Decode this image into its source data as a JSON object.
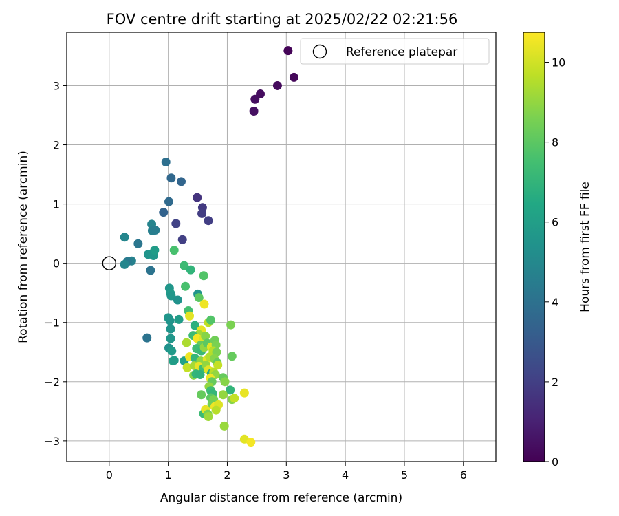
{
  "chart_data": {
    "type": "scatter",
    "title": "FOV centre drift starting at 2025/02/22 02:21:56",
    "xlabel": "Angular distance from reference (arcmin)",
    "ylabel": "Rotation from reference (arcmin)",
    "xlim": [
      -0.72,
      6.55
    ],
    "ylim": [
      -3.35,
      3.9
    ],
    "xticks": [
      "0",
      "1",
      "2",
      "3",
      "4",
      "5",
      "6"
    ],
    "yticks": [
      "−3",
      "−2",
      "−1",
      "0",
      "1",
      "2",
      "3"
    ],
    "grid": true,
    "legend": {
      "position": "top-right",
      "entries": [
        "Reference platepar"
      ]
    },
    "reference_point": {
      "x": 0,
      "y": 0
    },
    "colorbar": {
      "label": "Hours from first FF file",
      "min": 0,
      "max": 10.75,
      "ticks": [
        "0",
        "2",
        "4",
        "6",
        "8",
        "10"
      ],
      "colormap": "viridis"
    },
    "points": [
      {
        "x": 3.03,
        "y": 3.59,
        "h": 0.1
      },
      {
        "x": 3.13,
        "y": 3.14,
        "h": 0.2
      },
      {
        "x": 2.85,
        "y": 3.0,
        "h": 0.3
      },
      {
        "x": 2.56,
        "y": 2.86,
        "h": 0.35
      },
      {
        "x": 2.47,
        "y": 2.77,
        "h": 0.4
      },
      {
        "x": 2.45,
        "y": 2.57,
        "h": 0.45
      },
      {
        "x": 1.49,
        "y": 1.11,
        "h": 1.6
      },
      {
        "x": 1.58,
        "y": 0.94,
        "h": 1.8
      },
      {
        "x": 1.57,
        "y": 0.84,
        "h": 1.9
      },
      {
        "x": 1.68,
        "y": 0.72,
        "h": 1.95
      },
      {
        "x": 1.13,
        "y": 0.67,
        "h": 2.1
      },
      {
        "x": 1.24,
        "y": 0.4,
        "h": 2.0
      },
      {
        "x": 0.96,
        "y": 1.71,
        "h": 3.9
      },
      {
        "x": 1.05,
        "y": 1.44,
        "h": 3.6
      },
      {
        "x": 1.22,
        "y": 1.38,
        "h": 3.5
      },
      {
        "x": 1.01,
        "y": 1.04,
        "h": 3.7
      },
      {
        "x": 0.92,
        "y": 0.86,
        "h": 3.4
      },
      {
        "x": 0.72,
        "y": 0.66,
        "h": 4.8
      },
      {
        "x": 0.73,
        "y": 0.55,
        "h": 4.6
      },
      {
        "x": 0.78,
        "y": 0.56,
        "h": 4.5
      },
      {
        "x": 0.26,
        "y": 0.44,
        "h": 4.9
      },
      {
        "x": 0.49,
        "y": 0.33,
        "h": 4.2
      },
      {
        "x": 0.66,
        "y": 0.15,
        "h": 5.5
      },
      {
        "x": 0.75,
        "y": 0.13,
        "h": 5.6
      },
      {
        "x": 0.77,
        "y": 0.22,
        "h": 5.9
      },
      {
        "x": 0.38,
        "y": 0.04,
        "h": 4.7
      },
      {
        "x": 0.31,
        "y": 0.03,
        "h": 4.4
      },
      {
        "x": 0.26,
        "y": -0.02,
        "h": 4.9
      },
      {
        "x": 0.7,
        "y": -0.12,
        "h": 4.1
      },
      {
        "x": 0.64,
        "y": -1.26,
        "h": 4.1
      },
      {
        "x": 1.1,
        "y": 0.22,
        "h": 7.6
      },
      {
        "x": 1.27,
        "y": -0.04,
        "h": 7.3
      },
      {
        "x": 1.38,
        "y": -0.11,
        "h": 7.0
      },
      {
        "x": 1.6,
        "y": -0.21,
        "h": 7.8
      },
      {
        "x": 1.29,
        "y": -0.39,
        "h": 7.6
      },
      {
        "x": 1.02,
        "y": -0.42,
        "h": 5.6
      },
      {
        "x": 1.04,
        "y": -0.51,
        "h": 5.8
      },
      {
        "x": 1.05,
        "y": -0.55,
        "h": 5.6
      },
      {
        "x": 1.16,
        "y": -0.62,
        "h": 5.4
      },
      {
        "x": 1.5,
        "y": -0.52,
        "h": 5.5
      },
      {
        "x": 1.52,
        "y": -0.58,
        "h": 8.0
      },
      {
        "x": 1.61,
        "y": -0.69,
        "h": 10.5
      },
      {
        "x": 1.34,
        "y": -0.8,
        "h": 7.5
      },
      {
        "x": 1.36,
        "y": -0.89,
        "h": 10.3
      },
      {
        "x": 1.0,
        "y": -0.92,
        "h": 5.6
      },
      {
        "x": 1.03,
        "y": -0.97,
        "h": 5.5
      },
      {
        "x": 1.18,
        "y": -0.95,
        "h": 5.9
      },
      {
        "x": 1.04,
        "y": -1.11,
        "h": 5.5
      },
      {
        "x": 1.04,
        "y": -1.27,
        "h": 5.6
      },
      {
        "x": 1.01,
        "y": -1.43,
        "h": 5.4
      },
      {
        "x": 1.06,
        "y": -1.48,
        "h": 5.8
      },
      {
        "x": 1.08,
        "y": -1.65,
        "h": 6.3
      },
      {
        "x": 1.1,
        "y": -1.64,
        "h": 5.9
      },
      {
        "x": 1.27,
        "y": -1.65,
        "h": 6.1
      },
      {
        "x": 2.06,
        "y": -1.04,
        "h": 8.6
      },
      {
        "x": 2.08,
        "y": -1.57,
        "h": 8.2
      },
      {
        "x": 1.68,
        "y": -1.0,
        "h": 9.7
      },
      {
        "x": 1.72,
        "y": -0.96,
        "h": 7.8
      },
      {
        "x": 1.45,
        "y": -1.05,
        "h": 6.8
      },
      {
        "x": 1.56,
        "y": -1.13,
        "h": 10.4
      },
      {
        "x": 1.52,
        "y": -1.2,
        "h": 9.2
      },
      {
        "x": 1.42,
        "y": -1.22,
        "h": 7.3
      },
      {
        "x": 1.49,
        "y": -1.27,
        "h": 10.6
      },
      {
        "x": 1.6,
        "y": -1.27,
        "h": 10.2
      },
      {
        "x": 1.63,
        "y": -1.23,
        "h": 8.8
      },
      {
        "x": 1.31,
        "y": -1.34,
        "h": 9.4
      },
      {
        "x": 1.55,
        "y": -1.38,
        "h": 8.2
      },
      {
        "x": 1.48,
        "y": -1.44,
        "h": 7.4
      },
      {
        "x": 1.56,
        "y": -1.48,
        "h": 7.2
      },
      {
        "x": 1.61,
        "y": -1.42,
        "h": 9.0
      },
      {
        "x": 1.66,
        "y": -1.35,
        "h": 8.0
      },
      {
        "x": 1.73,
        "y": -1.41,
        "h": 10.3
      },
      {
        "x": 1.79,
        "y": -1.3,
        "h": 8.4
      },
      {
        "x": 1.81,
        "y": -1.38,
        "h": 8.6
      },
      {
        "x": 1.76,
        "y": -1.48,
        "h": 9.6
      },
      {
        "x": 1.82,
        "y": -1.5,
        "h": 8.6
      },
      {
        "x": 1.36,
        "y": -1.58,
        "h": 10.5
      },
      {
        "x": 1.45,
        "y": -1.6,
        "h": 7.1
      },
      {
        "x": 1.55,
        "y": -1.65,
        "h": 8.9
      },
      {
        "x": 1.66,
        "y": -1.62,
        "h": 10.3
      },
      {
        "x": 1.7,
        "y": -1.58,
        "h": 9.5
      },
      {
        "x": 1.78,
        "y": -1.61,
        "h": 8.8
      },
      {
        "x": 1.83,
        "y": -1.68,
        "h": 8.2
      },
      {
        "x": 1.84,
        "y": -1.72,
        "h": 9.8
      },
      {
        "x": 1.32,
        "y": -1.76,
        "h": 9.8
      },
      {
        "x": 1.44,
        "y": -1.73,
        "h": 9.3
      },
      {
        "x": 1.52,
        "y": -1.74,
        "h": 10.4
      },
      {
        "x": 1.59,
        "y": -1.78,
        "h": 7.4
      },
      {
        "x": 1.64,
        "y": -1.72,
        "h": 9.0
      },
      {
        "x": 1.68,
        "y": -1.8,
        "h": 10.3
      },
      {
        "x": 1.73,
        "y": -1.86,
        "h": 6.6
      },
      {
        "x": 1.77,
        "y": -1.84,
        "h": 9.6
      },
      {
        "x": 1.8,
        "y": -1.88,
        "h": 9.0
      },
      {
        "x": 1.43,
        "y": -1.89,
        "h": 8.8
      },
      {
        "x": 1.47,
        "y": -1.87,
        "h": 7.0
      },
      {
        "x": 1.54,
        "y": -1.88,
        "h": 6.9
      },
      {
        "x": 1.71,
        "y": -1.94,
        "h": 10.5
      },
      {
        "x": 1.74,
        "y": -2.0,
        "h": 8.2
      },
      {
        "x": 1.93,
        "y": -1.93,
        "h": 8.2
      },
      {
        "x": 1.96,
        "y": -2.0,
        "h": 8.8
      },
      {
        "x": 1.69,
        "y": -2.08,
        "h": 9.0
      },
      {
        "x": 1.72,
        "y": -2.15,
        "h": 7.4
      },
      {
        "x": 1.75,
        "y": -2.2,
        "h": 7.1
      },
      {
        "x": 2.05,
        "y": -2.14,
        "h": 7.0
      },
      {
        "x": 1.56,
        "y": -2.22,
        "h": 8.2
      },
      {
        "x": 1.72,
        "y": -2.27,
        "h": 8.0
      },
      {
        "x": 1.77,
        "y": -2.3,
        "h": 8.6
      },
      {
        "x": 1.93,
        "y": -2.22,
        "h": 9.0
      },
      {
        "x": 2.08,
        "y": -2.3,
        "h": 8.8
      },
      {
        "x": 2.12,
        "y": -2.28,
        "h": 9.8
      },
      {
        "x": 2.29,
        "y": -2.19,
        "h": 10.4
      },
      {
        "x": 1.74,
        "y": -2.38,
        "h": 8.4
      },
      {
        "x": 1.79,
        "y": -2.42,
        "h": 10.5
      },
      {
        "x": 1.85,
        "y": -2.39,
        "h": 10.2
      },
      {
        "x": 1.81,
        "y": -2.48,
        "h": 9.6
      },
      {
        "x": 1.6,
        "y": -2.54,
        "h": 7.3
      },
      {
        "x": 1.63,
        "y": -2.47,
        "h": 10.4
      },
      {
        "x": 1.67,
        "y": -2.55,
        "h": 8.6
      },
      {
        "x": 1.68,
        "y": -2.59,
        "h": 9.2
      },
      {
        "x": 1.95,
        "y": -2.75,
        "h": 9.1
      },
      {
        "x": 2.29,
        "y": -2.97,
        "h": 10.3
      },
      {
        "x": 2.4,
        "y": -3.02,
        "h": 10.6
      }
    ]
  }
}
